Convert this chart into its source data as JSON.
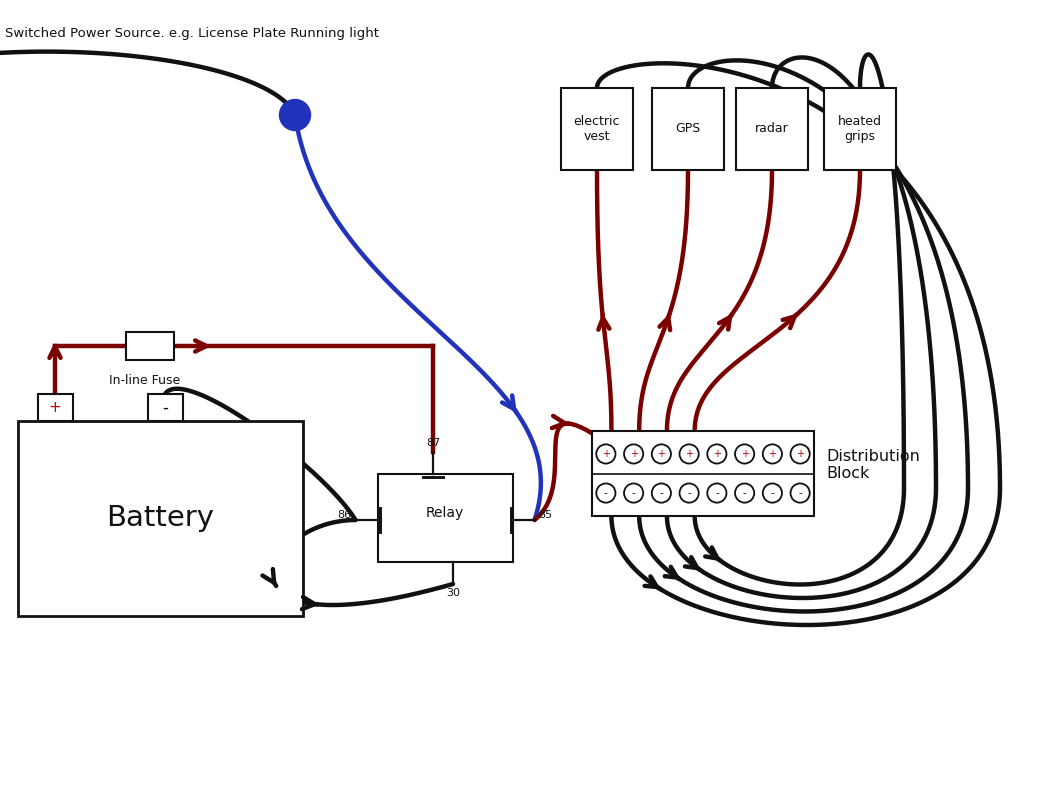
{
  "bg_color": "#ffffff",
  "dark_red": "#7B0000",
  "black": "#111111",
  "blue": "#2233BB",
  "title_text": "Switched Power Source. e.g. License Plate Running light",
  "battery_label": "Battery",
  "relay_label": "Relay",
  "fuse_label": "In-line Fuse",
  "dist_label": "Distribution\nBlock",
  "devices": [
    "electric\nvest",
    "GPS",
    "radar",
    "heated\ngrips"
  ],
  "relay_pins": [
    "87",
    "86",
    "85",
    "30"
  ],
  "lw": 3.2,
  "lw_thin": 1.6
}
